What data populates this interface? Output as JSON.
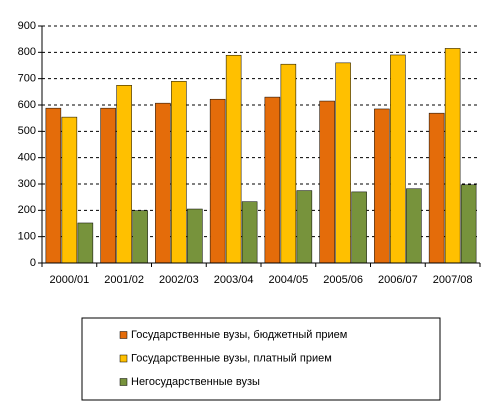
{
  "chart_data": {
    "type": "bar",
    "categories": [
      "2000/01",
      "2001/02",
      "2002/03",
      "2003/04",
      "2004/05",
      "2005/06",
      "2006/07",
      "2007/08"
    ],
    "series": [
      {
        "name": "Государственные вузы, бюджетный прием",
        "color": "#E46C0A",
        "values": [
          588,
          588,
          607,
          622,
          630,
          615,
          585,
          569
        ]
      },
      {
        "name": "Государственные вузы, платный прием",
        "color": "#FFC000",
        "values": [
          554,
          675,
          690,
          789,
          755,
          760,
          790,
          815
        ]
      },
      {
        "name": "Негосударственные вузы",
        "color": "#77933C",
        "values": [
          152,
          199,
          205,
          233,
          275,
          270,
          282,
          297
        ]
      }
    ],
    "ylim": [
      0,
      900
    ],
    "yticks": [
      0,
      100,
      200,
      300,
      400,
      500,
      600,
      700,
      800,
      900
    ],
    "grid": true
  }
}
